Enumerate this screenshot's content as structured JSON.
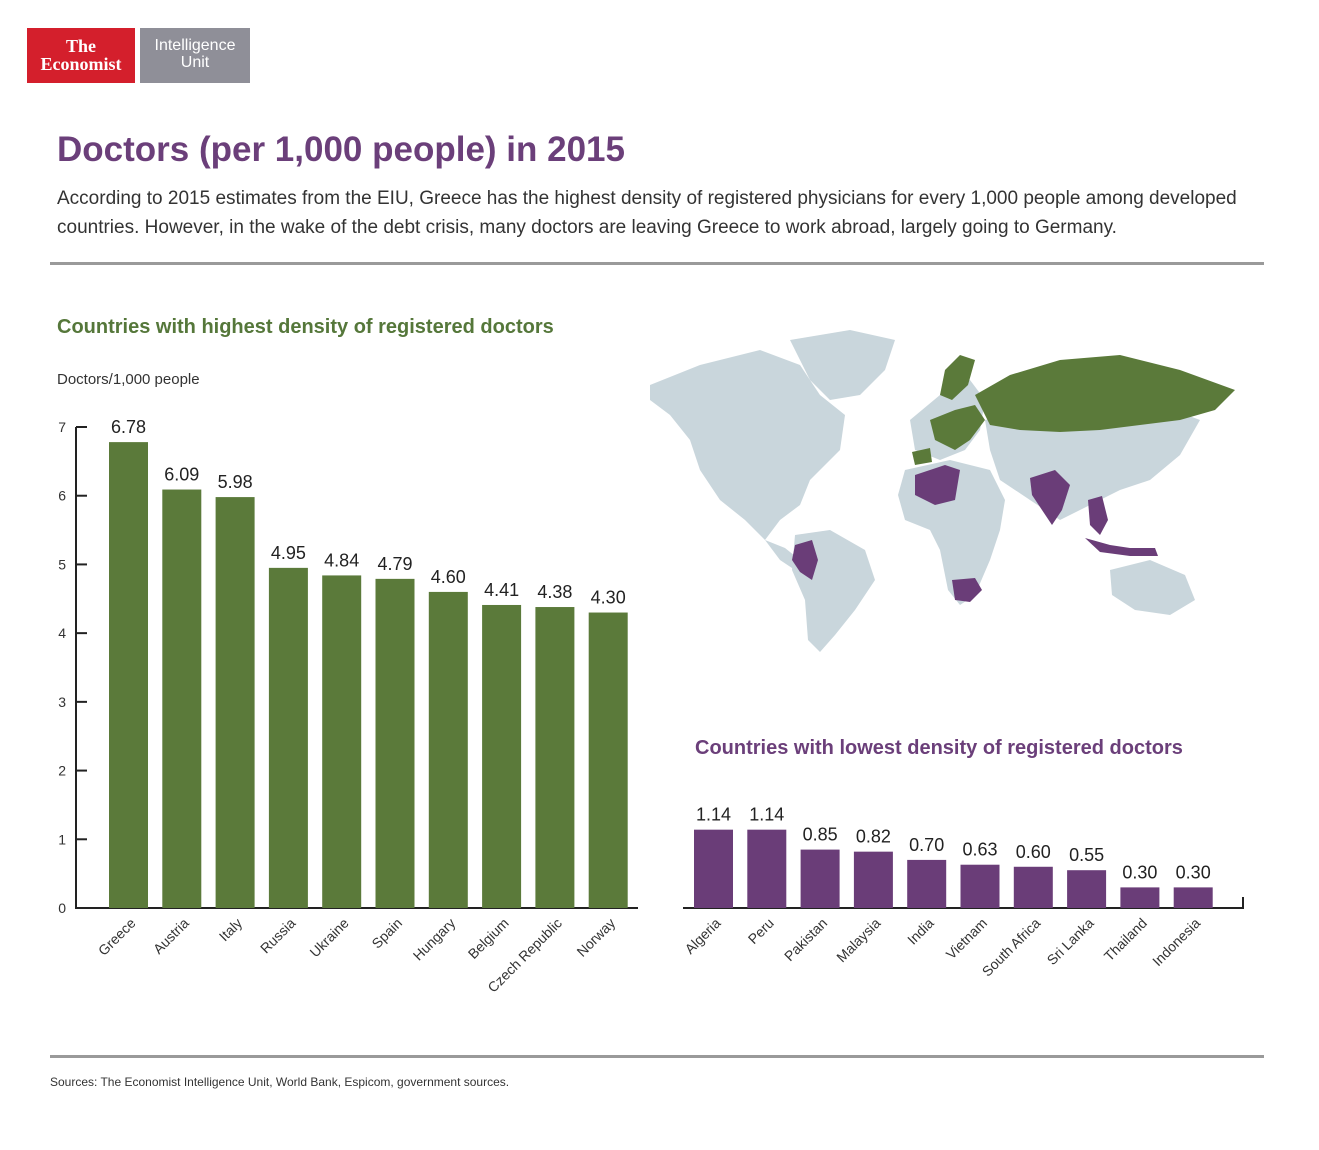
{
  "logo": {
    "line1": "The",
    "line2": "Economist",
    "unit_line1": "Intelligence",
    "unit_line2": "Unit"
  },
  "title": "Doctors (per 1,000 people) in 2015",
  "subtitle": "According to 2015 estimates from the EIU, Greece has the highest density of registered physicians for every 1,000 people among developed countries. However, in the wake of the debt crisis, many doctors are leaving Greece to work abroad, largely going to Germany.",
  "source": "Sources: The Economist Intelligence Unit, World Bank, Espicom, government sources.",
  "colors": {
    "highest": "#5b7a3a",
    "lowest": "#6a3d78",
    "map_land": "#c9d6dc",
    "brand_red": "#d41f2c",
    "brand_grey": "#8f8f98"
  },
  "chart_data": [
    {
      "type": "bar",
      "title": "Countries with highest density of registered doctors",
      "ylabel": "Doctors/1,000 people",
      "ylim": [
        0,
        7
      ],
      "yticks": [
        0,
        1,
        2,
        3,
        4,
        5,
        6,
        7
      ],
      "categories": [
        "Greece",
        "Austria",
        "Italy",
        "Russia",
        "Ukraine",
        "Spain",
        "Hungary",
        "Belgium",
        "Czech Republic",
        "Norway"
      ],
      "values": [
        6.78,
        6.09,
        5.98,
        4.95,
        4.84,
        4.79,
        4.6,
        4.41,
        4.38,
        4.3
      ],
      "labels": [
        "6.78",
        "6.09",
        "5.98",
        "4.95",
        "4.84",
        "4.79",
        "4.60",
        "4.41",
        "4.38",
        "4.30"
      ]
    },
    {
      "type": "bar",
      "title": "Countries with lowest density of registered doctors",
      "ylim": [
        0,
        7
      ],
      "categories": [
        "Algeria",
        "Peru",
        "Pakistan",
        "Malaysia",
        "India",
        "Vietnam",
        "South Africa",
        "Sri Lanka",
        "Thailand",
        "Indonesia"
      ],
      "values": [
        1.14,
        1.14,
        0.85,
        0.82,
        0.7,
        0.63,
        0.6,
        0.55,
        0.3,
        0.3
      ],
      "labels": [
        "1.14",
        "1.14",
        "0.85",
        "0.82",
        "0.70",
        "0.63",
        "0.60",
        "0.55",
        "0.30",
        "0.30"
      ]
    }
  ]
}
